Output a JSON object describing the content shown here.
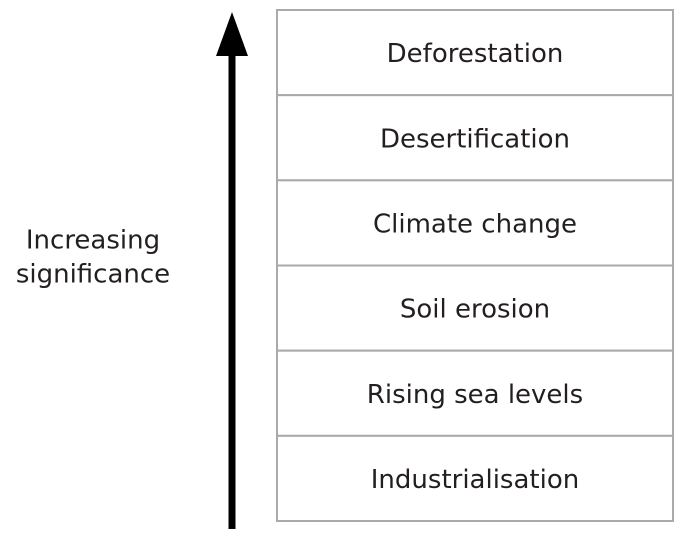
{
  "axis_label": [
    "Increasing",
    "significance"
  ],
  "items": [
    "Deforestation",
    "Desertification",
    "Climate change",
    "Soil erosion",
    "Rising sea levels",
    "Industrialisation"
  ]
}
